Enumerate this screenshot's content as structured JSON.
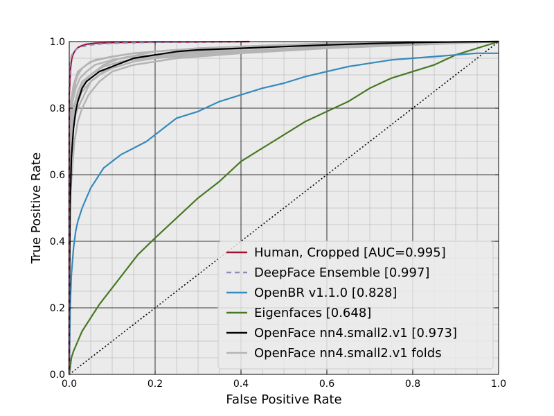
{
  "chart_data": {
    "type": "line",
    "title": "",
    "xlabel": "False Positive Rate",
    "ylabel": "True Positive Rate",
    "xlim": [
      0.0,
      1.0
    ],
    "ylim": [
      0.0,
      1.0
    ],
    "grid": true,
    "legend_position": "lower-right",
    "x_ticks": [
      "0.0",
      "0.2",
      "0.4",
      "0.6",
      "0.8",
      "1.0"
    ],
    "y_ticks": [
      "0.0",
      "0.2",
      "0.4",
      "0.6",
      "0.8",
      "1.0"
    ],
    "colors": {
      "background": "#ebebeb",
      "grid_major": "#000000",
      "grid_minor": "#aaaaaa",
      "human": "#a50f2f",
      "deepface": "#8d8dbd",
      "openbr": "#348abd",
      "eigenfaces": "#467821",
      "openface": "#000000",
      "folds": "#b4b4b4",
      "chance": "#000000"
    },
    "series": [
      {
        "name": "Human, Cropped [AUC=0.995]",
        "key": "human",
        "style": "solid",
        "x": [
          0.0,
          0.0,
          0.003,
          0.006,
          0.01,
          0.015,
          0.02,
          0.03,
          0.04,
          0.06,
          0.08,
          0.1,
          0.15,
          0.2,
          0.3,
          0.42
        ],
        "y": [
          0.0,
          0.84,
          0.92,
          0.95,
          0.965,
          0.975,
          0.982,
          0.988,
          0.992,
          0.995,
          0.996,
          0.997,
          0.998,
          0.999,
          0.999,
          1.0
        ]
      },
      {
        "name": "DeepFace Ensemble [0.997]",
        "key": "deepface",
        "style": "dashed",
        "x": [
          0.0,
          0.0,
          0.002,
          0.005,
          0.01,
          0.02,
          0.03,
          0.05,
          0.08,
          0.12,
          0.2,
          0.3,
          0.4
        ],
        "y": [
          0.0,
          0.87,
          0.93,
          0.955,
          0.97,
          0.98,
          0.985,
          0.99,
          0.994,
          0.996,
          0.998,
          0.999,
          1.0
        ]
      },
      {
        "name": "OpenBR v1.1.0 [0.828]",
        "key": "openbr",
        "style": "solid",
        "x": [
          0.0,
          0.002,
          0.005,
          0.01,
          0.015,
          0.02,
          0.03,
          0.04,
          0.05,
          0.06,
          0.08,
          0.1,
          0.12,
          0.15,
          0.18,
          0.2,
          0.22,
          0.25,
          0.3,
          0.35,
          0.4,
          0.45,
          0.5,
          0.55,
          0.6,
          0.65,
          0.7,
          0.75,
          0.8,
          0.85,
          0.9,
          0.95,
          1.0
        ],
        "y": [
          0.0,
          0.2,
          0.3,
          0.38,
          0.43,
          0.46,
          0.5,
          0.53,
          0.56,
          0.58,
          0.62,
          0.64,
          0.66,
          0.68,
          0.7,
          0.72,
          0.74,
          0.77,
          0.79,
          0.82,
          0.84,
          0.86,
          0.875,
          0.895,
          0.91,
          0.925,
          0.935,
          0.945,
          0.95,
          0.955,
          0.96,
          0.965,
          0.965
        ]
      },
      {
        "name": "Eigenfaces [0.648]",
        "key": "eigenfaces",
        "style": "solid",
        "x": [
          0.0,
          0.005,
          0.01,
          0.02,
          0.03,
          0.05,
          0.07,
          0.1,
          0.13,
          0.16,
          0.2,
          0.25,
          0.3,
          0.35,
          0.4,
          0.45,
          0.5,
          0.55,
          0.6,
          0.65,
          0.7,
          0.75,
          0.8,
          0.85,
          0.9,
          0.95,
          1.0
        ],
        "y": [
          0.0,
          0.05,
          0.07,
          0.1,
          0.13,
          0.17,
          0.21,
          0.26,
          0.31,
          0.36,
          0.41,
          0.47,
          0.53,
          0.58,
          0.64,
          0.68,
          0.72,
          0.76,
          0.79,
          0.82,
          0.86,
          0.89,
          0.91,
          0.93,
          0.96,
          0.98,
          1.0
        ]
      },
      {
        "name": "OpenFace nn4.small2.v1 [0.973]",
        "key": "openface",
        "style": "solid",
        "x": [
          0.0,
          0.0,
          0.002,
          0.005,
          0.01,
          0.015,
          0.02,
          0.03,
          0.04,
          0.05,
          0.07,
          0.1,
          0.13,
          0.15,
          0.2,
          0.25,
          0.3,
          0.4,
          0.5,
          0.6,
          0.7,
          0.8,
          0.9,
          1.0
        ],
        "y": [
          0.0,
          0.15,
          0.5,
          0.65,
          0.74,
          0.79,
          0.82,
          0.86,
          0.88,
          0.89,
          0.91,
          0.925,
          0.94,
          0.95,
          0.96,
          0.97,
          0.975,
          0.98,
          0.985,
          0.99,
          0.994,
          0.997,
          0.999,
          1.0
        ]
      },
      {
        "name": "OpenFace nn4.small2.v1 folds",
        "key": "folds",
        "style": "solid",
        "folds": [
          {
            "x": [
              0.0,
              0.0,
              0.005,
              0.01,
              0.02,
              0.03,
              0.05,
              0.08,
              0.12,
              0.2,
              0.3,
              0.5,
              0.7,
              1.0
            ],
            "y": [
              0.0,
              0.6,
              0.72,
              0.78,
              0.83,
              0.87,
              0.9,
              0.93,
              0.95,
              0.97,
              0.98,
              0.99,
              0.995,
              1.0
            ]
          },
          {
            "x": [
              0.0,
              0.0,
              0.004,
              0.01,
              0.02,
              0.035,
              0.05,
              0.08,
              0.12,
              0.2,
              0.35,
              0.5,
              0.7,
              1.0
            ],
            "y": [
              0.0,
              0.55,
              0.68,
              0.76,
              0.8,
              0.84,
              0.88,
              0.91,
              0.94,
              0.96,
              0.975,
              0.985,
              0.995,
              1.0
            ]
          },
          {
            "x": [
              0.0,
              0.0,
              0.005,
              0.01,
              0.015,
              0.02,
              0.03,
              0.05,
              0.1,
              0.15,
              0.25,
              0.4,
              0.6,
              1.0
            ],
            "y": [
              0.0,
              0.7,
              0.8,
              0.85,
              0.88,
              0.9,
              0.92,
              0.94,
              0.955,
              0.965,
              0.975,
              0.985,
              0.995,
              1.0
            ]
          },
          {
            "x": [
              0.0,
              0.0,
              0.006,
              0.012,
              0.02,
              0.03,
              0.045,
              0.07,
              0.1,
              0.15,
              0.25,
              0.4,
              0.6,
              0.8,
              1.0
            ],
            "y": [
              0.0,
              0.5,
              0.6,
              0.7,
              0.76,
              0.8,
              0.84,
              0.88,
              0.91,
              0.93,
              0.95,
              0.965,
              0.98,
              0.99,
              1.0
            ]
          },
          {
            "x": [
              0.0,
              0.0,
              0.003,
              0.008,
              0.015,
              0.025,
              0.04,
              0.06,
              0.1,
              0.15,
              0.25,
              0.45,
              0.65,
              1.0
            ],
            "y": [
              0.0,
              0.65,
              0.75,
              0.82,
              0.86,
              0.89,
              0.91,
              0.93,
              0.945,
              0.955,
              0.965,
              0.975,
              0.99,
              1.0
            ]
          },
          {
            "x": [
              0.0,
              0.0,
              0.005,
              0.01,
              0.02,
              0.03,
              0.05,
              0.07,
              0.1,
              0.15,
              0.2,
              0.35,
              0.55,
              0.8,
              1.0
            ],
            "y": [
              0.0,
              0.58,
              0.7,
              0.78,
              0.82,
              0.85,
              0.88,
              0.9,
              0.92,
              0.94,
              0.95,
              0.965,
              0.98,
              0.99,
              1.0
            ]
          },
          {
            "x": [
              0.0,
              0.0,
              0.004,
              0.01,
              0.02,
              0.04,
              0.06,
              0.1,
              0.15,
              0.2,
              0.3,
              0.5,
              0.7,
              1.0
            ],
            "y": [
              0.0,
              0.72,
              0.82,
              0.87,
              0.91,
              0.93,
              0.945,
              0.955,
              0.965,
              0.97,
              0.98,
              0.99,
              0.995,
              1.0
            ]
          },
          {
            "x": [
              0.0,
              0.0,
              0.005,
              0.01,
              0.02,
              0.03,
              0.05,
              0.08,
              0.12,
              0.2,
              0.3,
              0.45,
              0.6,
              0.8,
              1.0
            ],
            "y": [
              0.0,
              0.62,
              0.73,
              0.8,
              0.85,
              0.88,
              0.9,
              0.925,
              0.94,
              0.955,
              0.965,
              0.975,
              0.985,
              0.995,
              1.0
            ]
          }
        ]
      },
      {
        "name": "chance",
        "key": "chance",
        "style": "dotted",
        "x": [
          0.0,
          1.0
        ],
        "y": [
          0.0,
          1.0
        ]
      }
    ],
    "legend": [
      {
        "label": "Human, Cropped [AUC=0.995]",
        "key": "human",
        "style": "solid"
      },
      {
        "label": "DeepFace Ensemble [0.997]",
        "key": "deepface",
        "style": "dashed"
      },
      {
        "label": "OpenBR v1.1.0 [0.828]",
        "key": "openbr",
        "style": "solid"
      },
      {
        "label": "Eigenfaces [0.648]",
        "key": "eigenfaces",
        "style": "solid"
      },
      {
        "label": "OpenFace nn4.small2.v1 [0.973]",
        "key": "openface",
        "style": "solid"
      },
      {
        "label": "OpenFace nn4.small2.v1 folds",
        "key": "folds",
        "style": "solid"
      }
    ]
  }
}
